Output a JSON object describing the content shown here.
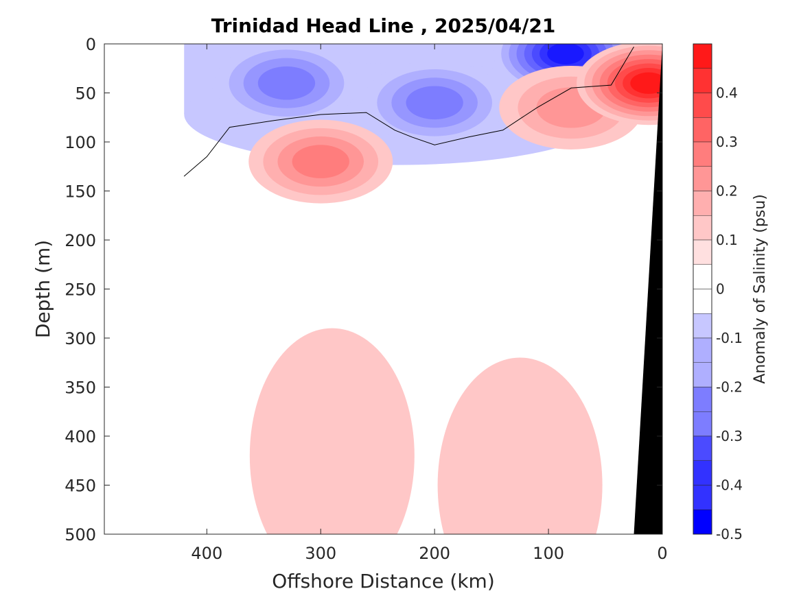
{
  "chart_data": {
    "type": "heatmap",
    "title": "Trinidad Head Line , 2025/04/21",
    "xlabel": "Offshore Distance (km)",
    "ylabel": "Depth (m)",
    "xlim": [
      490,
      0
    ],
    "ylim": [
      0,
      500
    ],
    "x_reversed": true,
    "y_reversed": true,
    "xticks": [
      400,
      300,
      200,
      100,
      0
    ],
    "yticks": [
      0,
      50,
      100,
      150,
      200,
      250,
      300,
      350,
      400,
      450,
      500
    ],
    "colorbar": {
      "label": "Anomaly of Salinity (psu)",
      "range": [
        -0.5,
        0.5
      ],
      "level_step": 0.05,
      "ticks": [
        0.4,
        0.3,
        0.2,
        0.1,
        0,
        -0.1,
        -0.2,
        -0.3,
        -0.4,
        -0.5
      ],
      "tick_labels": [
        "0.4",
        "0.3",
        "0.2",
        "0.1",
        "0",
        "-0.1",
        "-0.2",
        "-0.3",
        "-0.4",
        "-0.5"
      ],
      "negative_color": "#0000ff",
      "positive_color": "#ff0000",
      "neutral_color": "#ffffff"
    },
    "regions": [
      {
        "name": "upper-fresh-layer",
        "depth_range": [
          0,
          130
        ],
        "x_range": [
          420,
          45
        ],
        "anomaly": -0.1
      },
      {
        "name": "fresh-core-west",
        "distance": 330,
        "depth": 40,
        "anomaly": -0.25
      },
      {
        "name": "fresh-core-mid",
        "distance": 200,
        "depth": 60,
        "anomaly": -0.25
      },
      {
        "name": "fresh-core-nearshore",
        "distance": 85,
        "depth": 10,
        "anomaly": -0.45
      },
      {
        "name": "subsurface-salty-core",
        "distance": 300,
        "depth": 120,
        "anomaly": 0.25
      },
      {
        "name": "salty-core-shelf",
        "distance": 80,
        "depth": 65,
        "anomaly": 0.2
      },
      {
        "name": "coastal-salty-core",
        "distance": 12,
        "depth": 40,
        "anomaly": 0.45
      },
      {
        "name": "deep-salty-west",
        "distance": 290,
        "depth": 420,
        "anomaly": 0.05
      },
      {
        "name": "deep-salty-east",
        "distance": 125,
        "depth": 450,
        "anomaly": 0.05
      }
    ],
    "contour_levels": [
      0
    ],
    "bathymetry_color": "#000000",
    "grid": false
  }
}
